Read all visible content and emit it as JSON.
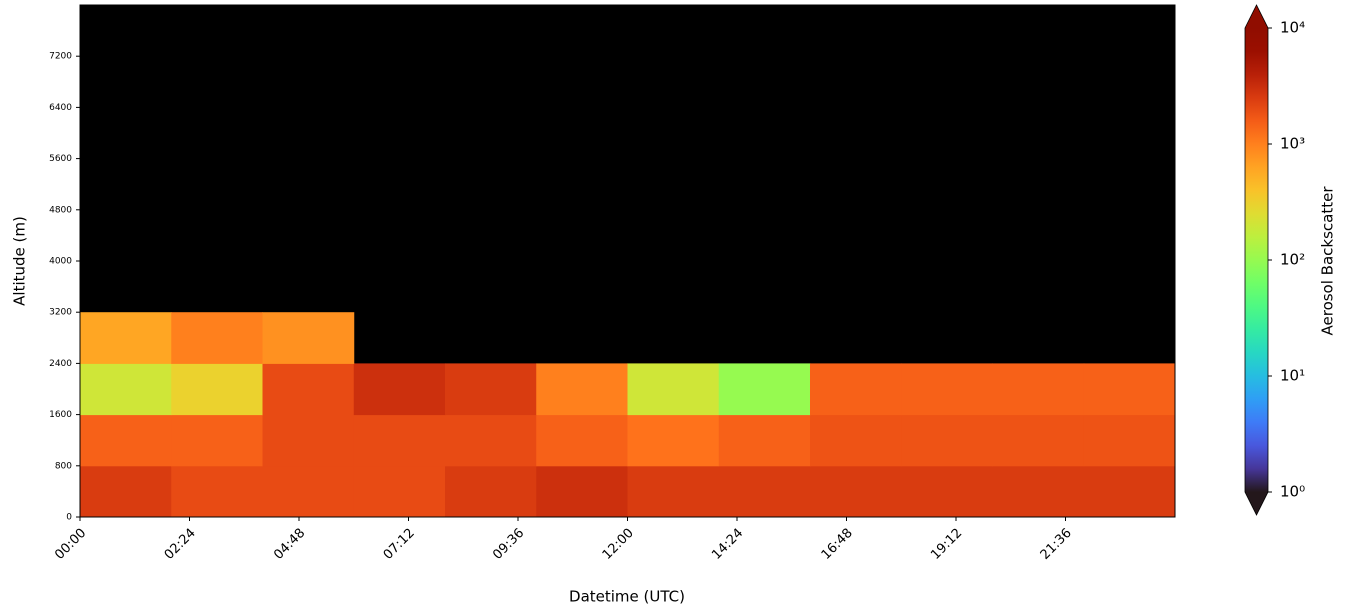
{
  "chart_data": {
    "type": "heatmap",
    "x_label": "Datetime (UTC)",
    "y_label": "Altitude (m)",
    "colorbar_label": "Aerosol Backscatter",
    "x": [
      0,
      2,
      4,
      6,
      8,
      10,
      12,
      14,
      16,
      18,
      20,
      22,
      24
    ],
    "y": [
      0,
      800,
      1600,
      2400,
      3200,
      4000,
      4800,
      5600,
      6400,
      7200,
      8000
    ],
    "values": [
      [
        2500,
        2000,
        2000,
        2000,
        2500,
        3000,
        2500,
        2500,
        2500,
        2500,
        2500,
        2500
      ],
      [
        1500,
        1500,
        2000,
        2000,
        2000,
        1500,
        1200,
        1500,
        1800,
        1800,
        1800,
        1800
      ],
      [
        200,
        300,
        2000,
        3000,
        2500,
        1000,
        200,
        100,
        1500,
        1500,
        1500,
        1500
      ],
      [
        600,
        1000,
        800,
        null,
        null,
        null,
        null,
        null,
        null,
        null,
        null,
        null
      ],
      [
        null,
        null,
        null,
        null,
        null,
        null,
        null,
        null,
        null,
        null,
        null,
        null
      ],
      [
        null,
        null,
        null,
        null,
        null,
        null,
        null,
        null,
        null,
        null,
        null,
        null
      ],
      [
        null,
        null,
        null,
        null,
        null,
        null,
        null,
        null,
        null,
        null,
        null,
        null
      ],
      [
        null,
        null,
        null,
        null,
        null,
        null,
        null,
        null,
        null,
        null,
        null,
        null
      ],
      [
        null,
        null,
        null,
        null,
        null,
        null,
        null,
        null,
        null,
        null,
        null,
        null
      ],
      [
        null,
        null,
        null,
        null,
        null,
        null,
        null,
        null,
        null,
        null,
        null,
        null
      ]
    ],
    "xlim": [
      0,
      24
    ],
    "ylim": [
      0,
      8000
    ],
    "xticks": [
      {
        "value": 0,
        "label": "00:00"
      },
      {
        "value": 2.4,
        "label": "02:24"
      },
      {
        "value": 4.8,
        "label": "04:48"
      },
      {
        "value": 7.2,
        "label": "07:12"
      },
      {
        "value": 9.6,
        "label": "09:36"
      },
      {
        "value": 12,
        "label": "12:00"
      },
      {
        "value": 14.4,
        "label": "14:24"
      },
      {
        "value": 16.8,
        "label": "16:48"
      },
      {
        "value": 19.2,
        "label": "19:12"
      },
      {
        "value": 21.6,
        "label": "21:36"
      }
    ],
    "yticks": [
      0,
      800,
      1600,
      2400,
      3200,
      4000,
      4800,
      5600,
      6400,
      7200
    ],
    "clim": [
      1,
      10000
    ],
    "color_scale": "log",
    "colormap": "turbo",
    "cticks": [
      {
        "value": 1,
        "label": "10⁰"
      },
      {
        "value": 10,
        "label": "10¹"
      },
      {
        "value": 100,
        "label": "10²"
      },
      {
        "value": 1000,
        "label": "10³"
      },
      {
        "value": 10000,
        "label": "10⁴"
      }
    ]
  }
}
